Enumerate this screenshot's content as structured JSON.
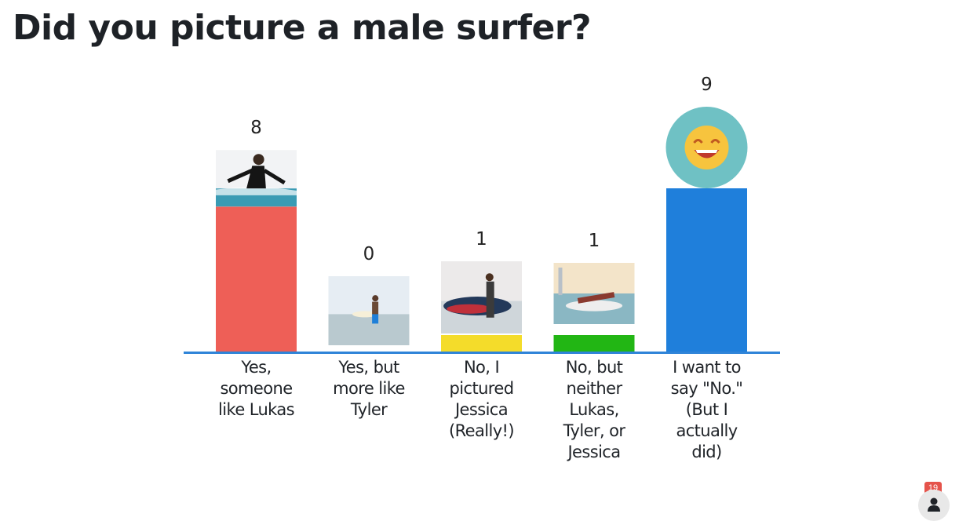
{
  "chart_data": {
    "type": "bar",
    "title": "Did you picture a male surfer?",
    "categories": [
      "Yes, someone like Lukas",
      "Yes, but more like Tyler",
      "No, I pictured Jessica (Really!)",
      "No, but neither Lukas, Tyler, or Jessica",
      "I want to say \"No.\" (But I actually did)"
    ],
    "category_lines": [
      [
        "Yes,",
        "someone",
        "like Lukas"
      ],
      [
        "Yes, but",
        "more like",
        "Tyler"
      ],
      [
        "No, I",
        "pictured",
        "Jessica",
        "(Really!)"
      ],
      [
        "No, but",
        "neither",
        "Lukas,",
        "Tyler, or",
        "Jessica"
      ],
      [
        "I want to",
        "say \"No.\"",
        "(But I",
        "actually",
        "did)"
      ]
    ],
    "values": [
      8,
      0,
      1,
      1,
      9
    ],
    "colors": [
      "#ee5f57",
      "#2a7be0",
      "#f4dc2a",
      "#22b614",
      "#1f7fdb"
    ],
    "bar_images": [
      "surfer-photo",
      "surfer-photo",
      "surfer-photo",
      "surfer-photo",
      "laughing-emoji-icon"
    ],
    "ylim": [
      0,
      9.6
    ],
    "axis_color": "#2f84d8",
    "grid": false,
    "legend": "none"
  },
  "participants": {
    "count": "19",
    "icon": "person-icon"
  }
}
